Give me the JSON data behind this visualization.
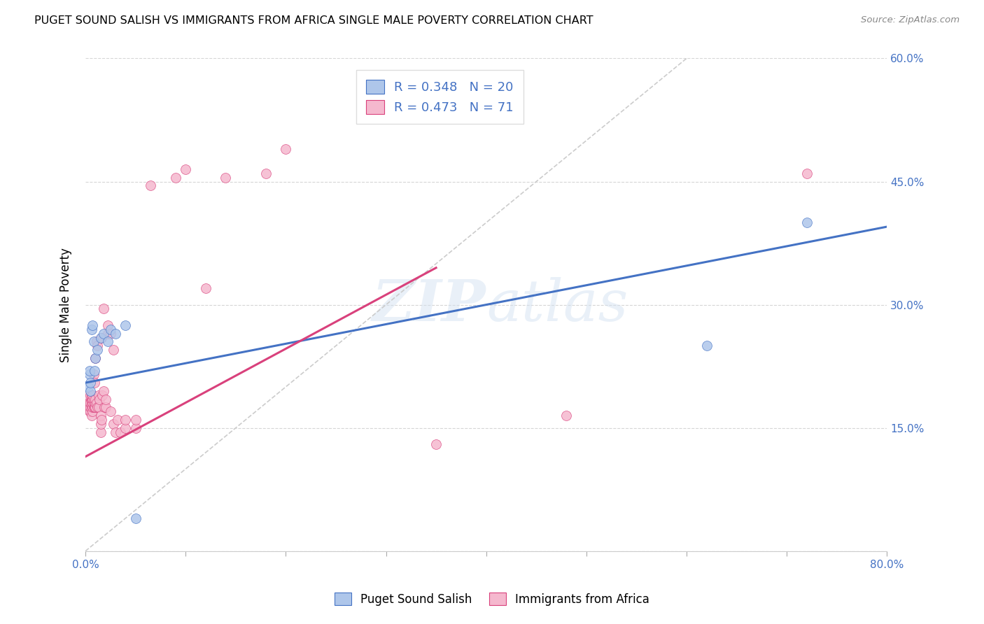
{
  "title": "PUGET SOUND SALISH VS IMMIGRANTS FROM AFRICA SINGLE MALE POVERTY CORRELATION CHART",
  "source": "Source: ZipAtlas.com",
  "ylabel": "Single Male Poverty",
  "background_color": "#ffffff",
  "watermark": "ZIPatlas",
  "blue_R": 0.348,
  "blue_N": 20,
  "pink_R": 0.473,
  "pink_N": 71,
  "blue_color": "#aec6ea",
  "pink_color": "#f5b8ce",
  "blue_line_color": "#4472c4",
  "pink_line_color": "#d9417c",
  "diagonal_color": "#cccccc",
  "legend_label_blue": "Puget Sound Salish",
  "legend_label_pink": "Immigrants from Africa",
  "xlim": [
    0,
    0.8
  ],
  "ylim": [
    0,
    0.6
  ],
  "blue_x": [
    0.003,
    0.004,
    0.004,
    0.005,
    0.005,
    0.006,
    0.007,
    0.008,
    0.009,
    0.01,
    0.012,
    0.015,
    0.018,
    0.022,
    0.025,
    0.03,
    0.04,
    0.05,
    0.62,
    0.72
  ],
  "blue_y": [
    0.2,
    0.215,
    0.22,
    0.195,
    0.205,
    0.27,
    0.275,
    0.255,
    0.22,
    0.235,
    0.245,
    0.26,
    0.265,
    0.255,
    0.27,
    0.265,
    0.275,
    0.04,
    0.25,
    0.4
  ],
  "pink_x": [
    0.002,
    0.003,
    0.003,
    0.004,
    0.004,
    0.004,
    0.005,
    0.005,
    0.005,
    0.005,
    0.006,
    0.006,
    0.006,
    0.006,
    0.006,
    0.007,
    0.007,
    0.007,
    0.007,
    0.007,
    0.008,
    0.008,
    0.008,
    0.008,
    0.009,
    0.009,
    0.01,
    0.01,
    0.01,
    0.01,
    0.011,
    0.011,
    0.012,
    0.012,
    0.013,
    0.013,
    0.014,
    0.015,
    0.015,
    0.015,
    0.016,
    0.016,
    0.017,
    0.018,
    0.018,
    0.019,
    0.02,
    0.02,
    0.022,
    0.022,
    0.025,
    0.025,
    0.028,
    0.028,
    0.03,
    0.032,
    0.035,
    0.04,
    0.04,
    0.05,
    0.05,
    0.065,
    0.09,
    0.1,
    0.12,
    0.14,
    0.18,
    0.2,
    0.35,
    0.48,
    0.72
  ],
  "pink_y": [
    0.175,
    0.18,
    0.19,
    0.17,
    0.175,
    0.18,
    0.17,
    0.175,
    0.18,
    0.19,
    0.165,
    0.175,
    0.18,
    0.185,
    0.19,
    0.17,
    0.175,
    0.18,
    0.185,
    0.19,
    0.175,
    0.18,
    0.185,
    0.215,
    0.175,
    0.205,
    0.175,
    0.18,
    0.185,
    0.235,
    0.18,
    0.255,
    0.175,
    0.25,
    0.175,
    0.19,
    0.185,
    0.145,
    0.155,
    0.165,
    0.16,
    0.26,
    0.19,
    0.195,
    0.295,
    0.175,
    0.175,
    0.185,
    0.265,
    0.275,
    0.17,
    0.265,
    0.155,
    0.245,
    0.145,
    0.16,
    0.145,
    0.15,
    0.16,
    0.15,
    0.16,
    0.445,
    0.455,
    0.465,
    0.32,
    0.455,
    0.46,
    0.49,
    0.13,
    0.165,
    0.46
  ],
  "blue_line_x": [
    0.0,
    0.8
  ],
  "blue_line_y": [
    0.205,
    0.395
  ],
  "pink_line_x": [
    0.0,
    0.35
  ],
  "pink_line_y": [
    0.115,
    0.345
  ]
}
